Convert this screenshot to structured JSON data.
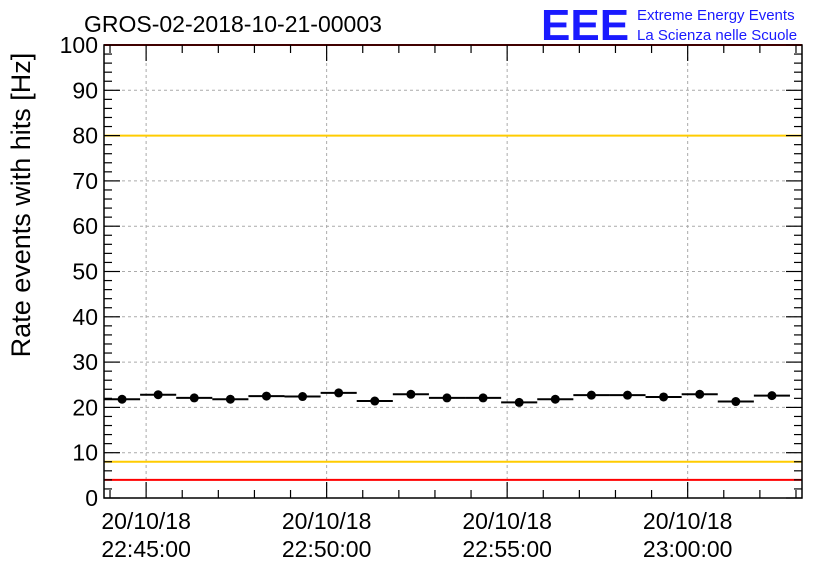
{
  "chart_data": {
    "type": "scatter",
    "title": "GROS-02-2018-10-21-00003",
    "ylabel": "Rate events with hits [Hz]",
    "xlabel": "",
    "ylim": [
      0,
      100
    ],
    "yticks": [
      "0",
      "10",
      "20",
      "30",
      "40",
      "50",
      "60",
      "70",
      "80",
      "90",
      "100"
    ],
    "xlim": [
      "2018-10-20 22:43:50",
      "2018-10-20 23:03:10"
    ],
    "xticks": [
      {
        "time": "2018-10-20 22:45:00",
        "line1": "20/10/18",
        "line2": "22:45:00"
      },
      {
        "time": "2018-10-20 22:50:00",
        "line1": "20/10/18",
        "line2": "22:50:00"
      },
      {
        "time": "2018-10-20 22:55:00",
        "line1": "20/10/18",
        "line2": "22:55:00"
      },
      {
        "time": "2018-10-20 23:00:00",
        "line1": "20/10/18",
        "line2": "23:00:00"
      }
    ],
    "grid": true,
    "bin_width_s": 60,
    "x": [
      "2018-10-20 22:44:20",
      "2018-10-20 22:45:20",
      "2018-10-20 22:46:20",
      "2018-10-20 22:47:20",
      "2018-10-20 22:48:20",
      "2018-10-20 22:49:20",
      "2018-10-20 22:50:20",
      "2018-10-20 22:51:20",
      "2018-10-20 22:52:20",
      "2018-10-20 22:53:20",
      "2018-10-20 22:54:20",
      "2018-10-20 22:55:20",
      "2018-10-20 22:56:20",
      "2018-10-20 22:57:20",
      "2018-10-20 22:58:20",
      "2018-10-20 22:59:20",
      "2018-10-20 23:00:20",
      "2018-10-20 23:01:20",
      "2018-10-20 23:02:20"
    ],
    "y": [
      21.8,
      22.8,
      22.1,
      21.8,
      22.5,
      22.4,
      23.2,
      21.4,
      22.9,
      22.1,
      22.1,
      21.1,
      21.8,
      22.7,
      22.7,
      22.3,
      22.9,
      21.3,
      22.6
    ],
    "reference_lines": [
      {
        "y": 100,
        "color": "#ff0000"
      },
      {
        "y": 80,
        "color": "#ffcc00"
      },
      {
        "y": 8,
        "color": "#ffcc00"
      },
      {
        "y": 4,
        "color": "#ff0000"
      }
    ]
  },
  "logo": {
    "mark": "EEE",
    "line1": "Extreme Energy Events",
    "line2": "La Scienza nelle Scuole",
    "color": "#1a1aff"
  }
}
